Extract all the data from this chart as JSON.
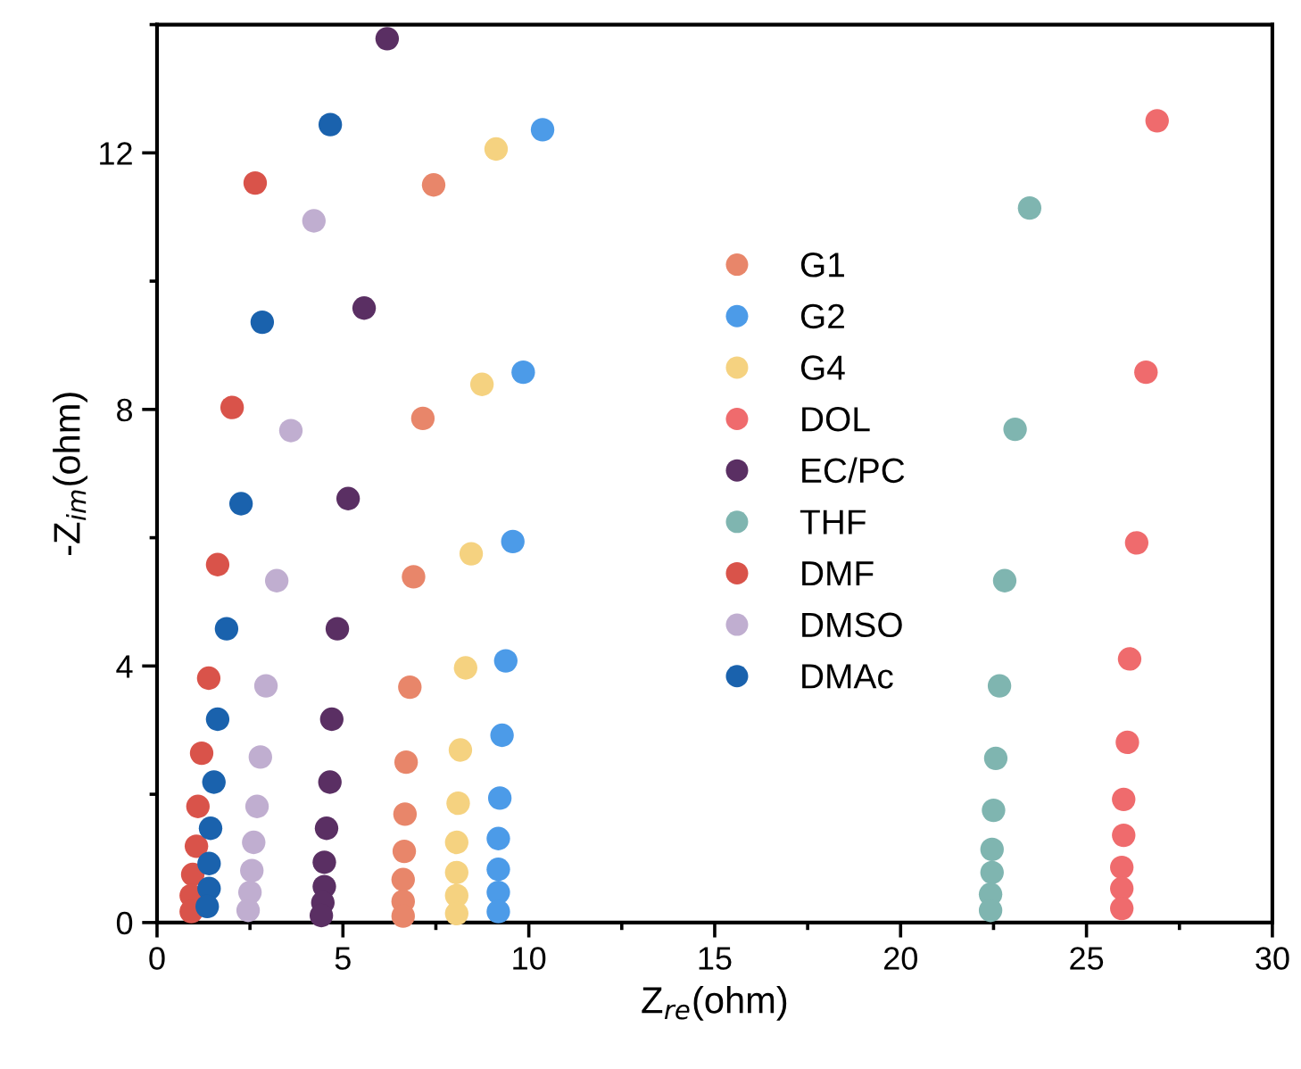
{
  "chart_data": {
    "type": "scatter",
    "xlabel": "Z$_{re}$(ohm)",
    "ylabel": "-Z$_{im}$(ohm)",
    "xlim": [
      0,
      30
    ],
    "xticks": [
      0,
      5,
      10,
      15,
      20,
      25,
      30
    ],
    "ylim": [
      0,
      14
    ],
    "yticks": [
      0,
      4,
      8,
      12
    ],
    "legend": "center",
    "marker": "circle",
    "grid": false,
    "series": [
      {
        "name": "G1",
        "color": "#e8866a",
        "x": [
          7.44,
          7.15,
          6.9,
          6.8,
          6.7,
          6.67,
          6.65,
          6.62,
          6.62,
          6.62
        ],
        "values": [
          11.5,
          7.86,
          5.39,
          3.67,
          2.5,
          1.69,
          1.11,
          0.67,
          0.33,
          0.1
        ]
      },
      {
        "name": "G2",
        "color": "#4c9be8",
        "x": [
          10.37,
          9.85,
          9.57,
          9.38,
          9.28,
          9.22,
          9.18,
          9.18,
          9.18,
          9.18
        ],
        "values": [
          12.36,
          8.58,
          5.94,
          4.08,
          2.92,
          1.94,
          1.31,
          0.83,
          0.47,
          0.17
        ]
      },
      {
        "name": "G4",
        "color": "#f5d280",
        "x": [
          9.12,
          8.74,
          8.45,
          8.3,
          8.16,
          8.1,
          8.06,
          8.06,
          8.06,
          8.06
        ],
        "values": [
          12.06,
          8.39,
          5.75,
          3.97,
          2.69,
          1.86,
          1.25,
          0.78,
          0.42,
          0.14
        ]
      },
      {
        "name": "DOL",
        "color": "#ef6b6d",
        "x": [
          26.9,
          26.6,
          26.35,
          26.16,
          26.1,
          26.0,
          26.0,
          25.95,
          25.95,
          25.95
        ],
        "values": [
          12.5,
          8.58,
          5.92,
          4.11,
          2.81,
          1.92,
          1.36,
          0.86,
          0.53,
          0.22
        ]
      },
      {
        "name": "EC/PC",
        "color": "#5a2f63",
        "x": [
          6.19,
          5.57,
          5.14,
          4.85,
          4.7,
          4.65,
          4.56,
          4.5,
          4.5,
          4.46,
          4.42
        ],
        "values": [
          13.78,
          9.58,
          6.61,
          4.58,
          3.17,
          2.19,
          1.47,
          0.94,
          0.56,
          0.31,
          0.11
        ]
      },
      {
        "name": "THF",
        "color": "#7fb5b0",
        "x": [
          23.47,
          23.08,
          22.8,
          22.66,
          22.56,
          22.5,
          22.46,
          22.46,
          22.42,
          22.42
        ],
        "values": [
          11.14,
          7.69,
          5.33,
          3.69,
          2.56,
          1.75,
          1.14,
          0.78,
          0.44,
          0.19
        ]
      },
      {
        "name": "DMF",
        "color": "#d9534a",
        "x": [
          2.64,
          2.02,
          1.63,
          1.39,
          1.2,
          1.1,
          1.06,
          0.96,
          0.92,
          0.92
        ],
        "values": [
          11.53,
          8.03,
          5.58,
          3.81,
          2.64,
          1.81,
          1.19,
          0.75,
          0.42,
          0.17
        ]
      },
      {
        "name": "DMSO",
        "color": "#c0aed0",
        "x": [
          4.22,
          3.6,
          3.22,
          2.93,
          2.78,
          2.69,
          2.6,
          2.55,
          2.5,
          2.45
        ],
        "values": [
          10.94,
          7.67,
          5.33,
          3.69,
          2.58,
          1.81,
          1.25,
          0.81,
          0.47,
          0.19
        ]
      },
      {
        "name": "DMAc",
        "color": "#1a62ad",
        "x": [
          4.66,
          2.83,
          2.26,
          1.87,
          1.63,
          1.53,
          1.44,
          1.4,
          1.4,
          1.35
        ],
        "values": [
          12.44,
          9.36,
          6.53,
          4.58,
          3.17,
          2.19,
          1.47,
          0.92,
          0.53,
          0.25
        ]
      }
    ]
  }
}
